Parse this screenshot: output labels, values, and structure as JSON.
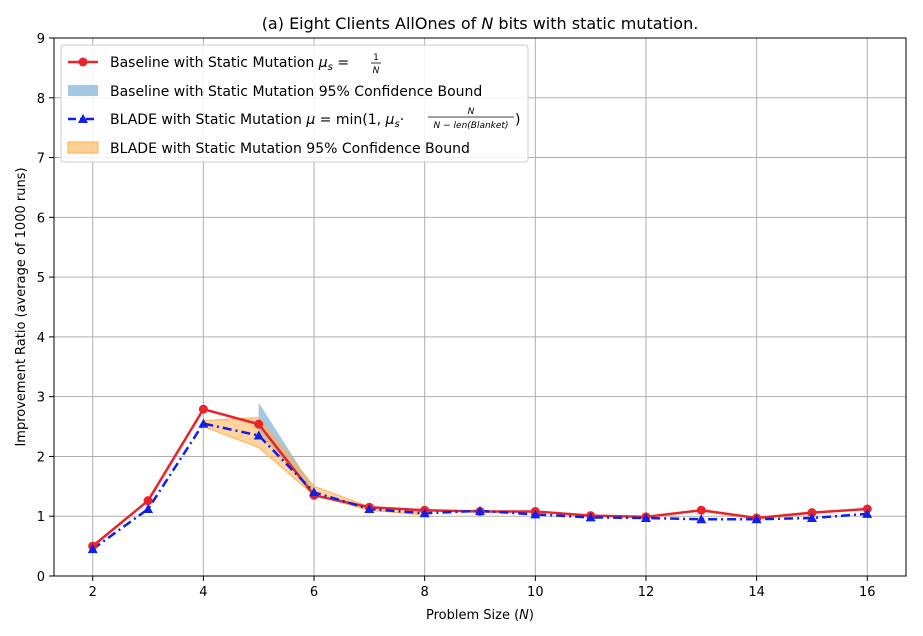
{
  "chart_data": {
    "type": "line",
    "title": {
      "main": "(a) Eight Clients AllOnes of ",
      "italic": "N",
      "rest": " bits with static mutation."
    },
    "xlabel": {
      "main": "Problem Size (",
      "italic": "N",
      "rest": ")"
    },
    "ylabel": "Improvement Ratio (average of 1000 runs)",
    "xlim": [
      1.3,
      16.7
    ],
    "ylim": [
      0,
      9
    ],
    "xticks": [
      2,
      4,
      6,
      8,
      10,
      12,
      14,
      16
    ],
    "yticks": [
      0,
      1,
      2,
      3,
      4,
      5,
      6,
      7,
      8,
      9
    ],
    "grid": true,
    "legend_position": "top-left",
    "x": [
      2,
      3,
      4,
      5,
      6,
      7,
      8,
      9,
      10,
      11,
      12,
      13,
      14,
      15,
      16
    ],
    "series": [
      {
        "name": "Baseline with Static Mutation μs = 1/N",
        "kind": "line",
        "color": "#e8242a",
        "marker": "circle",
        "values": [
          0.5,
          1.26,
          2.79,
          2.54,
          1.35,
          1.15,
          1.1,
          1.08,
          1.08,
          1.01,
          0.99,
          1.1,
          0.97,
          1.06,
          1.12
        ]
      },
      {
        "name": "Baseline with Static Mutation 95% Confidence Bound",
        "kind": "band",
        "color": "#7fb0d5",
        "x": [
          5,
          6
        ],
        "lower": [
          2.4,
          1.35
        ],
        "upper": [
          2.9,
          1.45
        ]
      },
      {
        "name": "BLADE with Static Mutation μ = min(1, μs · N / (N − len(Blanket)))",
        "kind": "line",
        "color": "#1020e8",
        "marker": "triangle",
        "values": [
          0.45,
          1.12,
          2.55,
          2.35,
          1.4,
          1.12,
          1.05,
          1.09,
          1.03,
          0.98,
          0.97,
          0.95,
          0.95,
          0.97,
          1.04
        ]
      },
      {
        "name": "BLADE with Static Mutation 95% Confidence Bound",
        "kind": "band",
        "color": "#ffb050",
        "x": [
          4,
          5,
          6,
          7,
          8
        ],
        "lower": [
          2.5,
          2.15,
          1.35,
          1.1,
          1.02
        ],
        "upper": [
          2.6,
          2.65,
          1.5,
          1.16,
          1.08
        ]
      }
    ],
    "legend": {
      "baseline_line": {
        "text": "Baseline with Static Mutation ",
        "math": "μ",
        "sub": "s",
        "eq": " = ",
        "num": "1",
        "den": "N"
      },
      "baseline_band": "Baseline with Static Mutation 95% Confidence Bound",
      "blade_line": {
        "text": "BLADE with Static Mutation ",
        "math": "μ",
        "eq": " = min(1, ",
        "mu": "μ",
        "sub": "s",
        "dot": "·",
        "num": "N",
        "den": "N − len(Blanket)",
        "close": ")"
      },
      "blade_band": "BLADE with Static Mutation 95% Confidence Bound"
    }
  }
}
